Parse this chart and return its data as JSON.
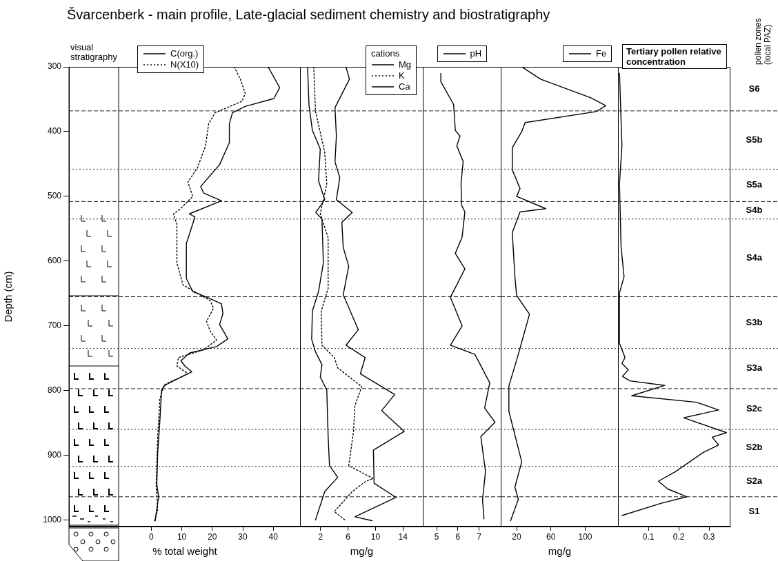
{
  "chart_data": [
    {
      "type": "line",
      "title": "Švarcenberk - main profile, Late-glacial sediment chemistry and biostratigraphy",
      "annotations": [
        "visual stratigraphy"
      ],
      "ylabel": "Depth (cm)",
      "ylim": [
        1010,
        300
      ],
      "yticks": [
        300,
        400,
        500,
        600,
        700,
        800,
        900,
        1000
      ],
      "xlabel": "% total weight",
      "xlim": [
        -27,
        49
      ],
      "xticks": [
        0,
        10,
        20,
        30,
        40
      ],
      "legend": "top left",
      "marker": "none",
      "series": [
        {
          "name": "C(org.)",
          "color": "#000000",
          "line_style": "solid",
          "x": [
            38.3,
            42.1,
            40.2,
            30.8,
            26.6,
            25.6,
            25.6,
            22.4,
            17.8,
            16.2,
            17.2,
            23.0,
            12.5,
            14.3,
            11.5,
            11.5,
            13.6,
            18.3,
            23.0,
            23.5,
            22.4,
            25.1,
            21.4,
            12.5,
            9.7,
            11.0,
            13.3,
            4.7,
            3.4,
            2.8,
            2.1,
            1.8,
            2.4,
            1.6,
            1.3
          ],
          "values": [
            300,
            332,
            349,
            361,
            371,
            388,
            417,
            451,
            476,
            485,
            495,
            507,
            527,
            532,
            573,
            627,
            647,
            656,
            666,
            681,
            698,
            720,
            732,
            742,
            754,
            762,
            771,
            791,
            798,
            847,
            896,
            945,
            964,
            989,
            1001
          ]
        },
        {
          "name": "N(X10)",
          "color": "#000000",
          "line_style": "dotted",
          "x": [
            27.2,
            29.2,
            30.8,
            29.8,
            20.9,
            18.8,
            17.8,
            15.1,
            12.0,
            13.6,
            9.4,
            7.3,
            8.4,
            8.4,
            10.4,
            19.3,
            20.4,
            18.1,
            19.3,
            21.4,
            17.2,
            8.9,
            8.4,
            12.0,
            4.2,
            2.8,
            2.1,
            1.6,
            2.1,
            1.1
          ],
          "values": [
            300,
            319,
            341,
            353,
            371,
            388,
            422,
            456,
            478,
            500,
            520,
            527,
            544,
            603,
            637,
            661,
            673,
            693,
            708,
            722,
            737,
            749,
            762,
            774,
            791,
            813,
            871,
            945,
            984,
            1001
          ]
        }
      ],
      "ref_lines": [
        {
          "axis": "y",
          "value": 368,
          "line_style": "dashed"
        },
        {
          "axis": "y",
          "value": 458,
          "line_style": "dotted"
        },
        {
          "axis": "y",
          "value": 508,
          "line_style": "dashed"
        },
        {
          "axis": "y",
          "value": 535,
          "line_style": "dotted"
        },
        {
          "axis": "y",
          "value": 655,
          "line_style": "dashed"
        },
        {
          "axis": "y",
          "value": 735,
          "line_style": "dotted"
        },
        {
          "axis": "y",
          "value": 797,
          "line_style": "dashed"
        },
        {
          "axis": "y",
          "value": 860,
          "line_style": "dotted"
        },
        {
          "axis": "y",
          "value": 917,
          "line_style": "dotted"
        },
        {
          "axis": "y",
          "value": 964,
          "line_style": "dashed"
        }
      ]
    },
    {
      "type": "line",
      "xlabel": "mg/g",
      "legend_title": "cations",
      "xlim": [
        -1,
        17
      ],
      "xticks": [
        2,
        6,
        10,
        14
      ],
      "ylim": [
        1010,
        300
      ],
      "tick_labels": "x",
      "legend": "top right",
      "marker": "none",
      "series": [
        {
          "name": "Mg",
          "color": "#000000",
          "line_style": "solid",
          "x": [
            0.1,
            0.3,
            0.8,
            1.95,
            1.7,
            2.6,
            1.3,
            2.2,
            2.4,
            1.7,
            0.8,
            0.7,
            1.25,
            2.2,
            1.95,
            2.9,
            3.1,
            3.3,
            4.5,
            2.6,
            1.25
          ],
          "values": [
            300,
            358,
            398,
            427,
            476,
            505,
            525,
            535,
            603,
            647,
            677,
            721,
            740,
            760,
            779,
            799,
            872,
            916,
            934,
            956,
            1000
          ]
        },
        {
          "name": "K",
          "color": "#000000",
          "line_style": "dotted",
          "x": [
            1.0,
            1.25,
            2.6,
            2.9,
            1.95,
            3.1,
            3.1,
            2.1,
            2.2,
            4.0,
            4.5,
            8.0,
            7.0,
            6.8,
            6.1,
            9.7,
            8.6,
            6.6,
            4.0,
            5.7
          ],
          "values": [
            300,
            368,
            432,
            481,
            527,
            564,
            642,
            677,
            730,
            749,
            765,
            794,
            823,
            863,
            916,
            936,
            940,
            956,
            987,
            1001
          ]
        },
        {
          "name": "Ca",
          "color": "#000000",
          "line_style": "solid",
          "x": [
            5.7,
            6.2,
            4.1,
            4.3,
            4.1,
            4.8,
            4.3,
            6.6,
            5.1,
            5.3,
            6.1,
            5.3,
            7.5,
            5.7,
            8.5,
            7.8,
            12.8,
            10.9,
            14.2,
            9.7,
            9.8,
            13.0,
            7.0,
            9.5
          ],
          "values": [
            300,
            319,
            363,
            407,
            447,
            471,
            505,
            525,
            540,
            579,
            608,
            652,
            706,
            730,
            749,
            774,
            806,
            831,
            863,
            892,
            943,
            965,
            995,
            1001
          ]
        }
      ],
      "ref_lines": [
        {
          "axis": "y",
          "value": 368,
          "line_style": "dashed"
        },
        {
          "axis": "y",
          "value": 458,
          "line_style": "dotted"
        },
        {
          "axis": "y",
          "value": 508,
          "line_style": "dashed"
        },
        {
          "axis": "y",
          "value": 535,
          "line_style": "dotted"
        },
        {
          "axis": "y",
          "value": 655,
          "line_style": "dashed"
        },
        {
          "axis": "y",
          "value": 735,
          "line_style": "dotted"
        },
        {
          "axis": "y",
          "value": 797,
          "line_style": "dashed"
        },
        {
          "axis": "y",
          "value": 860,
          "line_style": "dotted"
        },
        {
          "axis": "y",
          "value": 917,
          "line_style": "dotted"
        },
        {
          "axis": "y",
          "value": 964,
          "line_style": "dashed"
        }
      ]
    },
    {
      "type": "line",
      "xlim": [
        4.35,
        8.05
      ],
      "xticks": [
        5,
        6,
        7
      ],
      "ylim": [
        1010,
        300
      ],
      "tick_labels": "x",
      "legend": "top",
      "marker": "none",
      "series": [
        {
          "name": "pH",
          "color": "#000000",
          "line_style": "solid",
          "x": [
            5.2,
            5.2,
            5.8,
            5.88,
            6.1,
            5.95,
            6.25,
            6.15,
            6.18,
            6.33,
            6.2,
            5.88,
            6.33,
            5.65,
            6.2,
            5.65,
            6.8,
            7.5,
            7.26,
            7.75,
            7.08,
            7.3,
            7.16,
            7.23
          ],
          "values": [
            310,
            323,
            358,
            398,
            407,
            422,
            446,
            480,
            514,
            524,
            563,
            588,
            612,
            656,
            700,
            730,
            744,
            788,
            827,
            849,
            871,
            925,
            969,
            998
          ]
        }
      ],
      "ref_lines": [
        {
          "axis": "y",
          "value": 368,
          "line_style": "dashed"
        },
        {
          "axis": "y",
          "value": 458,
          "line_style": "dotted"
        },
        {
          "axis": "y",
          "value": 508,
          "line_style": "dashed"
        },
        {
          "axis": "y",
          "value": 535,
          "line_style": "dotted"
        },
        {
          "axis": "y",
          "value": 655,
          "line_style": "dashed"
        },
        {
          "axis": "y",
          "value": 735,
          "line_style": "dotted"
        },
        {
          "axis": "y",
          "value": 797,
          "line_style": "dashed"
        },
        {
          "axis": "y",
          "value": 860,
          "line_style": "dotted"
        },
        {
          "axis": "y",
          "value": 917,
          "line_style": "dotted"
        },
        {
          "axis": "y",
          "value": 964,
          "line_style": "dashed"
        }
      ]
    },
    {
      "type": "line",
      "xlabel": "mg/g",
      "xlim": [
        1.5,
        139
      ],
      "xticks": [
        20,
        60,
        100
      ],
      "ylim": [
        1010,
        300
      ],
      "tick_labels": "x",
      "legend": "top right",
      "marker": "none",
      "series": [
        {
          "name": "Fe",
          "color": "#000000",
          "line_style": "solid",
          "x": [
            26,
            48,
            107,
            124,
            113,
            30,
            26,
            15,
            15,
            24,
            20,
            54,
            24,
            15,
            18,
            20,
            35,
            22,
            11,
            11,
            26,
            18,
            22,
            13
          ],
          "values": [
            300,
            319,
            348,
            360,
            369,
            386,
            400,
            425,
            459,
            488,
            500,
            519,
            524,
            556,
            624,
            653,
            682,
            744,
            793,
            832,
            910,
            949,
            968,
            1001
          ]
        }
      ],
      "ref_lines": [
        {
          "axis": "y",
          "value": 368,
          "line_style": "dashed"
        },
        {
          "axis": "y",
          "value": 458,
          "line_style": "dotted"
        },
        {
          "axis": "y",
          "value": 508,
          "line_style": "dashed"
        },
        {
          "axis": "y",
          "value": 535,
          "line_style": "dotted"
        },
        {
          "axis": "y",
          "value": 655,
          "line_style": "dashed"
        },
        {
          "axis": "y",
          "value": 735,
          "line_style": "dotted"
        },
        {
          "axis": "y",
          "value": 797,
          "line_style": "dashed"
        },
        {
          "axis": "y",
          "value": 860,
          "line_style": "dotted"
        },
        {
          "axis": "y",
          "value": 917,
          "line_style": "dotted"
        },
        {
          "axis": "y",
          "value": 964,
          "line_style": "dashed"
        }
      ]
    },
    {
      "type": "line",
      "title": "Tertiary pollen relative concentration",
      "xlim": [
        0,
        0.37
      ],
      "xticks": [
        0.1,
        0.2,
        0.3
      ],
      "ylim": [
        1010,
        300
      ],
      "tick_labels": "x",
      "marker": "none",
      "series": [
        {
          "color": "#000000",
          "line_style": "solid",
          "x": [
            0.005,
            0.013,
            0.005,
            0.01,
            0.02,
            0.005,
            0.005,
            0.023,
            0.013,
            0.034,
            0.015,
            0.039,
            0.154,
            0.045,
            0.258,
            0.331,
            0.216,
            0.357,
            0.31,
            0.331,
            0.279,
            0.19,
            0.133,
            0.164,
            0.227,
            0.143,
            0.013
          ],
          "values": [
            310,
            422,
            480,
            577,
            624,
            649,
            727,
            749,
            758,
            768,
            778,
            785,
            792,
            808,
            818,
            830,
            842,
            865,
            872,
            884,
            896,
            925,
            940,
            952,
            964,
            974,
            993
          ]
        }
      ],
      "annotations": [
        "pollen zones (local PAZ)",
        "S6",
        "S5b",
        "S5a",
        "S4b",
        "S4a",
        "S3b",
        "S3a",
        "S2c",
        "S2b",
        "S2a",
        "S1"
      ],
      "ref_lines": [
        {
          "axis": "y",
          "value": 368,
          "line_style": "dashed"
        },
        {
          "axis": "y",
          "value": 458,
          "line_style": "dotted"
        },
        {
          "axis": "y",
          "value": 508,
          "line_style": "dashed"
        },
        {
          "axis": "y",
          "value": 535,
          "line_style": "dotted"
        },
        {
          "axis": "y",
          "value": 655,
          "line_style": "dashed"
        },
        {
          "axis": "y",
          "value": 735,
          "line_style": "dotted"
        },
        {
          "axis": "y",
          "value": 797,
          "line_style": "dashed"
        },
        {
          "axis": "y",
          "value": 860,
          "line_style": "dotted"
        },
        {
          "axis": "y",
          "value": 917,
          "line_style": "dotted"
        },
        {
          "axis": "y",
          "value": 964,
          "line_style": "dashed"
        }
      ]
    }
  ]
}
